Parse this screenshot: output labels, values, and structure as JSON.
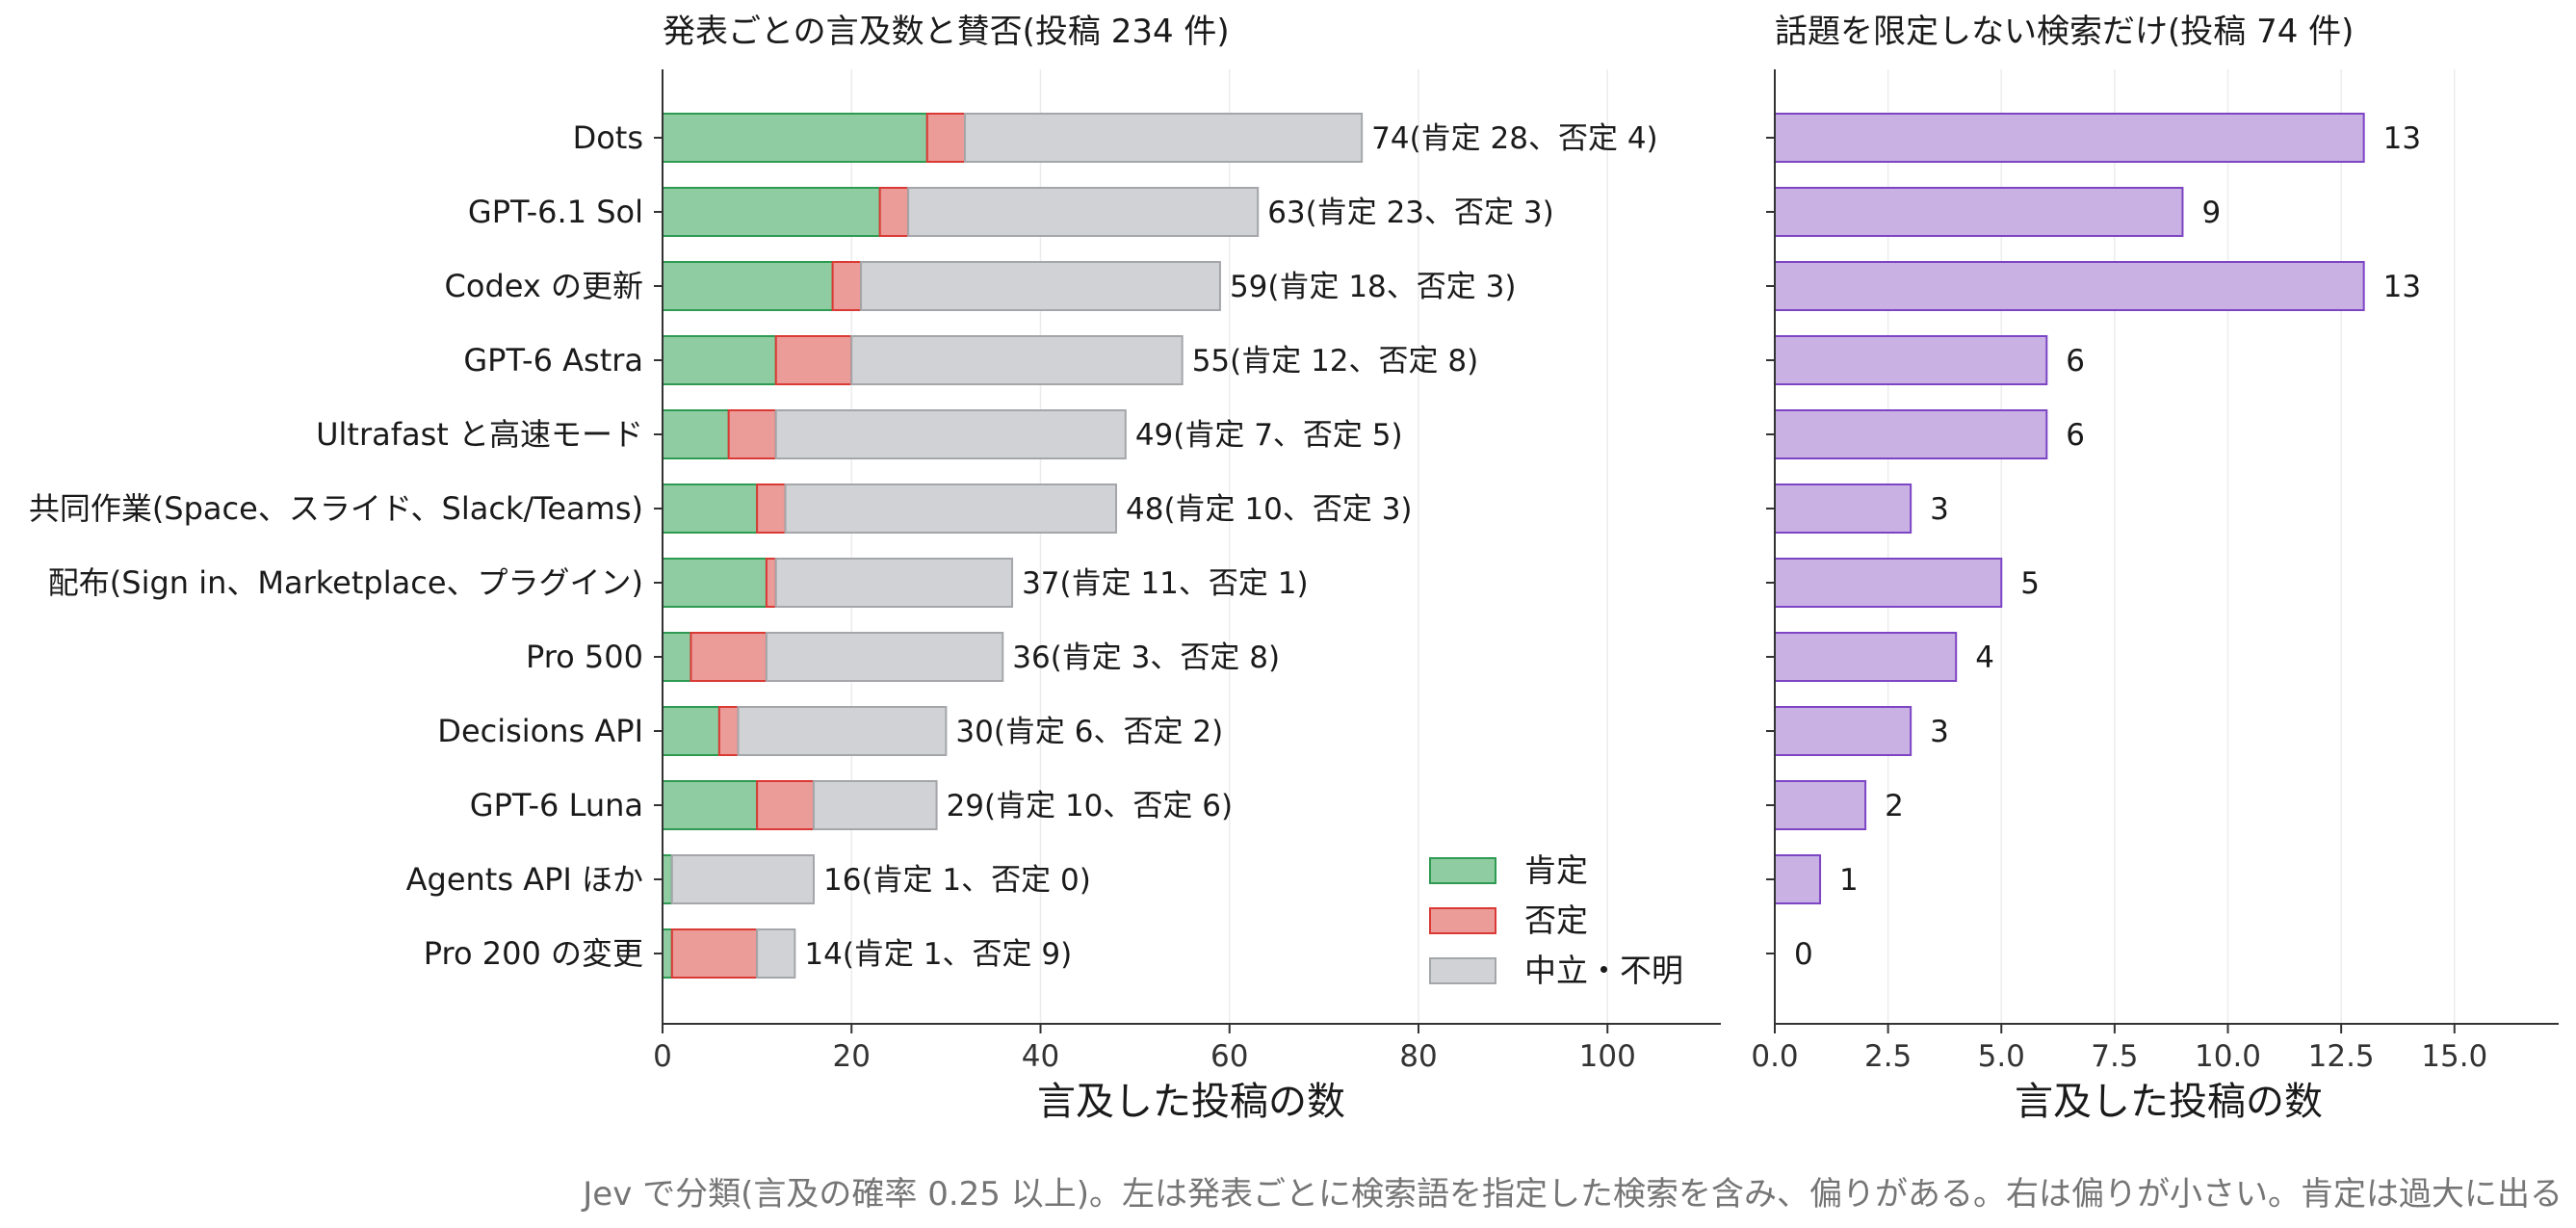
{
  "chart_data": [
    {
      "type": "bar",
      "orientation": "horizontal",
      "stacked": true,
      "title": "発表ごとの言及数と賛否(投稿 234 件)",
      "xlabel": "言及した投稿の数",
      "xlim": [
        0,
        112
      ],
      "xticks": [
        0,
        20,
        40,
        60,
        80,
        100
      ],
      "categories": [
        "Dots",
        "GPT-6.1 Sol",
        "Codex の更新",
        "GPT-6 Astra",
        "Ultrafast と高速モード",
        "共同作業(Space、スライド、Slack/Teams)",
        "配布(Sign in、Marketplace、プラグイン)",
        "Pro 500",
        "Decisions API",
        "GPT-6 Luna",
        "Agents API ほか",
        "Pro 200 の変更"
      ],
      "series": [
        {
          "name": "肯定",
          "values": [
            28,
            23,
            18,
            12,
            7,
            10,
            11,
            3,
            6,
            10,
            1,
            1
          ]
        },
        {
          "name": "否定",
          "values": [
            4,
            3,
            3,
            8,
            5,
            3,
            1,
            8,
            2,
            6,
            0,
            9
          ]
        },
        {
          "name": "中立・不明",
          "values": [
            42,
            37,
            38,
            35,
            37,
            35,
            25,
            25,
            22,
            13,
            15,
            4
          ]
        }
      ],
      "totals": [
        74,
        63,
        59,
        55,
        49,
        48,
        37,
        36,
        30,
        29,
        16,
        14
      ],
      "data_labels": [
        "74(肯定 28、否定 4)",
        "63(肯定 23、否定 3)",
        "59(肯定 18、否定 3)",
        "55(肯定 12、否定 8)",
        "49(肯定 7、否定 5)",
        "48(肯定 10、否定 3)",
        "37(肯定 11、否定 1)",
        "36(肯定 3、否定 8)",
        "30(肯定 6、否定 2)",
        "29(肯定 10、否定 6)",
        "16(肯定 1、否定 0)",
        "14(肯定 1、否定 9)"
      ],
      "legend": {
        "position": "lower-right",
        "entries": [
          "肯定",
          "否定",
          "中立・不明"
        ]
      },
      "colors": {
        "肯定": "#8fcca2",
        "否定": "#eb9b98",
        "中立・不明": "#d0d2d6",
        "肯定_edge": "#2e9a52",
        "否定_edge": "#d93a35",
        "中立・不明_edge": "#a4a6aa"
      },
      "grid": "x"
    },
    {
      "type": "bar",
      "orientation": "horizontal",
      "title": "話題を限定しない検索だけ(投稿 74 件)",
      "xlabel": "言及した投稿の数",
      "xlim": [
        0,
        17.3
      ],
      "xticks": [
        "0.0",
        "2.5",
        "5.0",
        "7.5",
        "10.0",
        "12.5",
        "15.0"
      ],
      "categories": [
        "Dots",
        "GPT-6.1 Sol",
        "Codex の更新",
        "GPT-6 Astra",
        "Ultrafast と高速モード",
        "共同作業(Space、スライド、Slack/Teams)",
        "配布(Sign in、Marketplace、プラグイン)",
        "Pro 500",
        "Decisions API",
        "GPT-6 Luna",
        "Agents API ほか",
        "Pro 200 の変更"
      ],
      "values": [
        13,
        9,
        13,
        6,
        6,
        3,
        5,
        4,
        3,
        2,
        1,
        0
      ],
      "data_labels": [
        "13",
        "9",
        "13",
        "6",
        "6",
        "3",
        "5",
        "4",
        "3",
        "2",
        "1",
        "0"
      ],
      "colors": {
        "fill": "#c9b1e4",
        "edge": "#7d45c4"
      },
      "grid": "x"
    }
  ],
  "caption": "Jev で分類(言及の確率 0.25 以上)。左は発表ごとに検索語を指定した検索を含み、偏りがある。右は偏りが小さい。肯定は過大に出る"
}
